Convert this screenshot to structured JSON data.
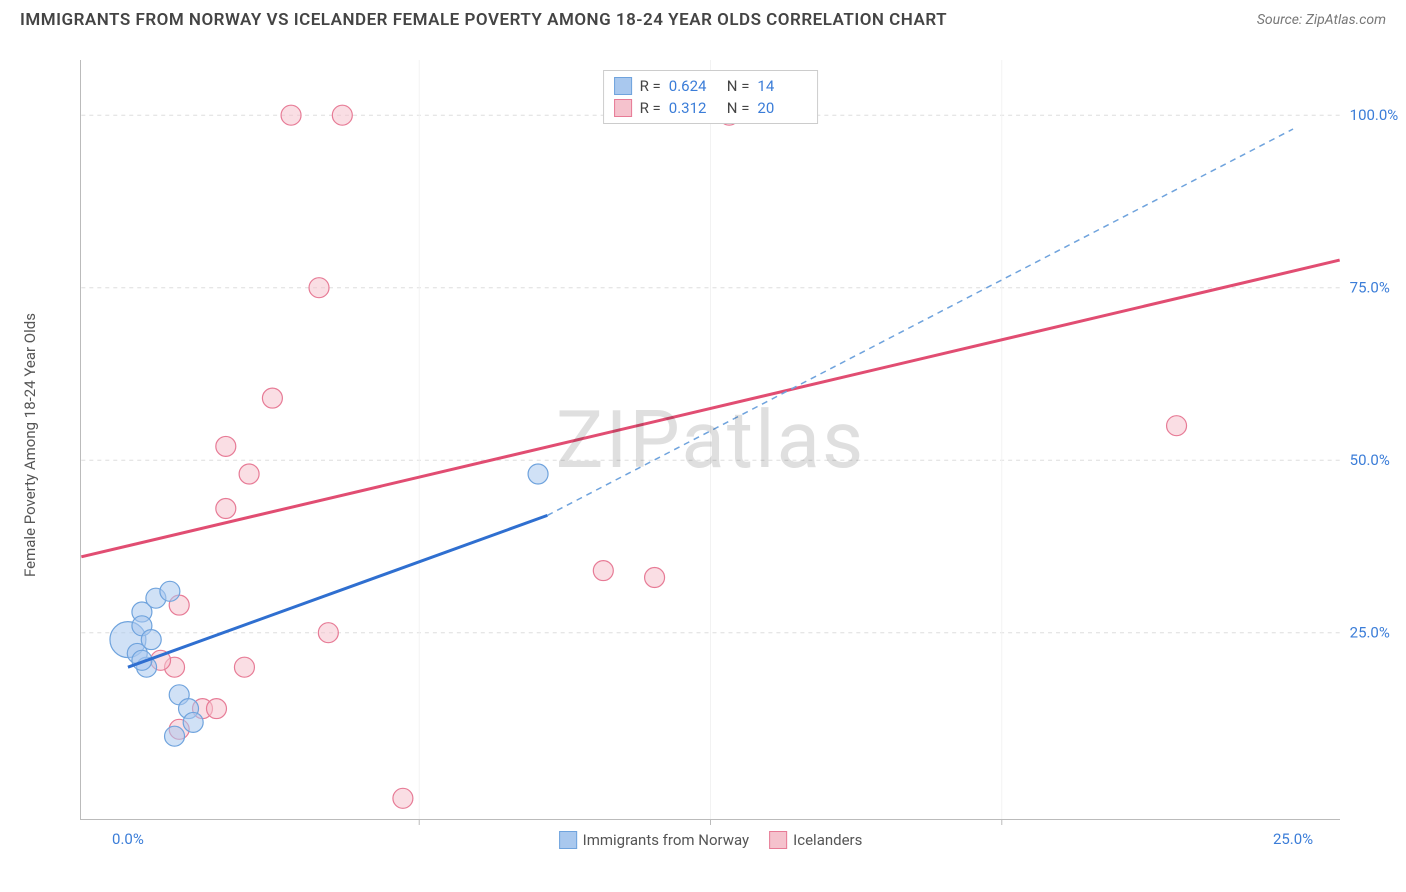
{
  "header": {
    "title": "IMMIGRANTS FROM NORWAY VS ICELANDER FEMALE POVERTY AMONG 18-24 YEAR OLDS CORRELATION CHART",
    "source": "Source: ZipAtlas.com"
  },
  "watermark": "ZIPatlas",
  "chart": {
    "type": "scatter",
    "ylabel": "Female Poverty Among 18-24 Year Olds",
    "background_color": "#ffffff",
    "grid_color": "#dddddd",
    "axis_color": "#bbbbbb",
    "axis_tick_color": "#3b7dd8",
    "xlim": [
      -1,
      26
    ],
    "ylim": [
      -2,
      108
    ],
    "yticks": [
      {
        "value": 25,
        "label": "25.0%"
      },
      {
        "value": 50,
        "label": "50.0%"
      },
      {
        "value": 75,
        "label": "75.0%"
      },
      {
        "value": 100,
        "label": "100.0%"
      }
    ],
    "xticks": [
      {
        "value": 0,
        "label": "0.0%"
      },
      {
        "value": 25,
        "label": "25.0%"
      }
    ],
    "x_minor_ticks": [
      6.25,
      12.5,
      18.75
    ],
    "series": [
      {
        "key": "norway",
        "label": "Immigrants from Norway",
        "color_fill": "#a9c8ee",
        "color_stroke": "#6fa3dd",
        "line_color": "#2f6fd0",
        "line_dash_color": "#6fa3dd",
        "marker_radius": 10,
        "fill_opacity": 0.55,
        "R": "0.624",
        "N": "14",
        "trend": {
          "x1": 0,
          "y1": 20,
          "x2": 9,
          "y2": 42,
          "x2_dash": 25,
          "y2_dash": 98
        },
        "points": [
          {
            "x": 0.0,
            "y": 24,
            "r": 18
          },
          {
            "x": 0.3,
            "y": 28
          },
          {
            "x": 0.3,
            "y": 26
          },
          {
            "x": 0.6,
            "y": 30
          },
          {
            "x": 0.9,
            "y": 31
          },
          {
            "x": 0.2,
            "y": 22
          },
          {
            "x": 0.4,
            "y": 20
          },
          {
            "x": 1.1,
            "y": 16
          },
          {
            "x": 1.3,
            "y": 14
          },
          {
            "x": 1.4,
            "y": 12
          },
          {
            "x": 1.0,
            "y": 10
          },
          {
            "x": 0.3,
            "y": 21
          },
          {
            "x": 8.8,
            "y": 48
          },
          {
            "x": 0.5,
            "y": 24
          }
        ]
      },
      {
        "key": "iceland",
        "label": "Icelanders",
        "color_fill": "#f5c2cd",
        "color_stroke": "#e77b96",
        "line_color": "#e14d72",
        "marker_radius": 10,
        "fill_opacity": 0.55,
        "R": "0.312",
        "N": "20",
        "trend": {
          "x1": -1,
          "y1": 36,
          "x2": 26,
          "y2": 79
        },
        "points": [
          {
            "x": 3.5,
            "y": 100
          },
          {
            "x": 4.6,
            "y": 100
          },
          {
            "x": 12.9,
            "y": 100
          },
          {
            "x": 4.1,
            "y": 75
          },
          {
            "x": 3.1,
            "y": 59
          },
          {
            "x": 2.1,
            "y": 52
          },
          {
            "x": 2.6,
            "y": 48
          },
          {
            "x": 2.1,
            "y": 43
          },
          {
            "x": 22.5,
            "y": 55
          },
          {
            "x": 10.2,
            "y": 34
          },
          {
            "x": 11.3,
            "y": 33
          },
          {
            "x": 4.3,
            "y": 25
          },
          {
            "x": 2.5,
            "y": 20
          },
          {
            "x": 1.0,
            "y": 20
          },
          {
            "x": 0.7,
            "y": 21
          },
          {
            "x": 1.1,
            "y": 29
          },
          {
            "x": 1.6,
            "y": 14
          },
          {
            "x": 1.9,
            "y": 14
          },
          {
            "x": 1.1,
            "y": 11
          },
          {
            "x": 5.9,
            "y": 1
          }
        ]
      }
    ],
    "legend_top": {
      "rows": [
        {
          "swatch_fill": "#a9c8ee",
          "swatch_stroke": "#6fa3dd",
          "R": "0.624",
          "N": "14"
        },
        {
          "swatch_fill": "#f5c2cd",
          "swatch_stroke": "#e77b96",
          "R": "0.312",
          "N": "20"
        }
      ],
      "r_label": "R =",
      "n_label": "N ="
    },
    "legend_bottom": [
      {
        "swatch_fill": "#a9c8ee",
        "swatch_stroke": "#6fa3dd",
        "label": "Immigrants from Norway"
      },
      {
        "swatch_fill": "#f5c2cd",
        "swatch_stroke": "#e77b96",
        "label": "Icelanders"
      }
    ]
  }
}
